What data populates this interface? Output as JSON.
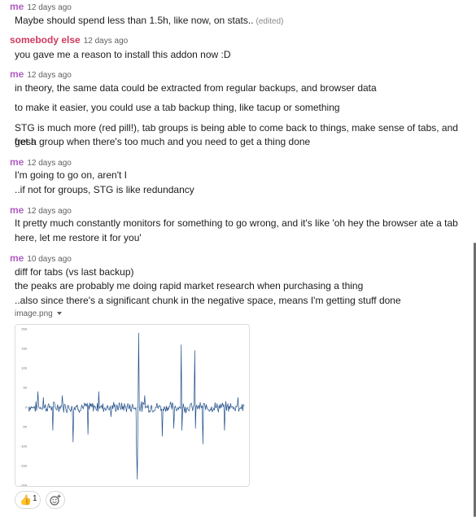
{
  "messages": [
    {
      "author": "me",
      "time": "12 days ago",
      "lines": [
        "Maybe should spend less than 1.5h, like now, on stats.."
      ],
      "edited": "(edited)"
    },
    {
      "author": "somebody else",
      "time": "12 days ago",
      "lines": [
        "you gave me a reason to install this addon now :D"
      ]
    },
    {
      "author": "me",
      "time": "12 days ago",
      "lines": [
        "in theory, the same data could be extracted from regular backups, and browser data",
        "to make it easier, you could use a tab backup thing, like tacup or something",
        "STG is much more (red pill!), tab groups is being able to come back to things, make sense of tabs, and get a",
        "fresh group when there's too much and you need to get a thing done"
      ]
    },
    {
      "author": "me",
      "time": "12 days ago",
      "lines": [
        "I'm going to go on, aren't I",
        "..if not for groups, STG is like redundancy"
      ]
    },
    {
      "author": "me",
      "time": "12 days ago",
      "lines": [
        "It pretty much constantly monitors for something to go wrong, and it's like 'oh hey the browser ate a tab",
        "here, let me restore it for you'"
      ]
    },
    {
      "author": "me",
      "time": "10 days ago",
      "lines": [
        "diff for tabs (vs last backup)",
        "the peaks are probably me doing rapid market research when purchasing a thing",
        "..also since there's a significant chunk in the negative space, means I'm getting stuff done"
      ]
    }
  ],
  "attachment": {
    "filename": "image.png"
  },
  "chart_data": {
    "type": "line",
    "yticks": [
      200,
      150,
      100,
      50,
      0,
      -50,
      -100,
      -150,
      -200
    ],
    "ylim": [
      -200,
      200
    ],
    "line_color": "#1f4e8a",
    "spikes": [
      {
        "i": 14,
        "v": 40
      },
      {
        "i": 22,
        "v": 25
      },
      {
        "i": 36,
        "v": -60
      },
      {
        "i": 50,
        "v": 30
      },
      {
        "i": 66,
        "v": -90
      },
      {
        "i": 88,
        "v": -70
      },
      {
        "i": 104,
        "v": 40
      },
      {
        "i": 122,
        "v": -25
      },
      {
        "i": 160,
        "v": -120
      },
      {
        "i": 161,
        "v": -185
      },
      {
        "i": 163,
        "v": 190
      },
      {
        "i": 172,
        "v": 30
      },
      {
        "i": 198,
        "v": -75
      },
      {
        "i": 215,
        "v": -55
      },
      {
        "i": 226,
        "v": 160
      },
      {
        "i": 227,
        "v": -60
      },
      {
        "i": 246,
        "v": 145
      },
      {
        "i": 247,
        "v": -55
      },
      {
        "i": 258,
        "v": -95
      },
      {
        "i": 290,
        "v": -60
      },
      {
        "i": 310,
        "v": 25
      }
    ]
  },
  "reactions": [
    {
      "emoji": "👍",
      "count": "1"
    }
  ]
}
